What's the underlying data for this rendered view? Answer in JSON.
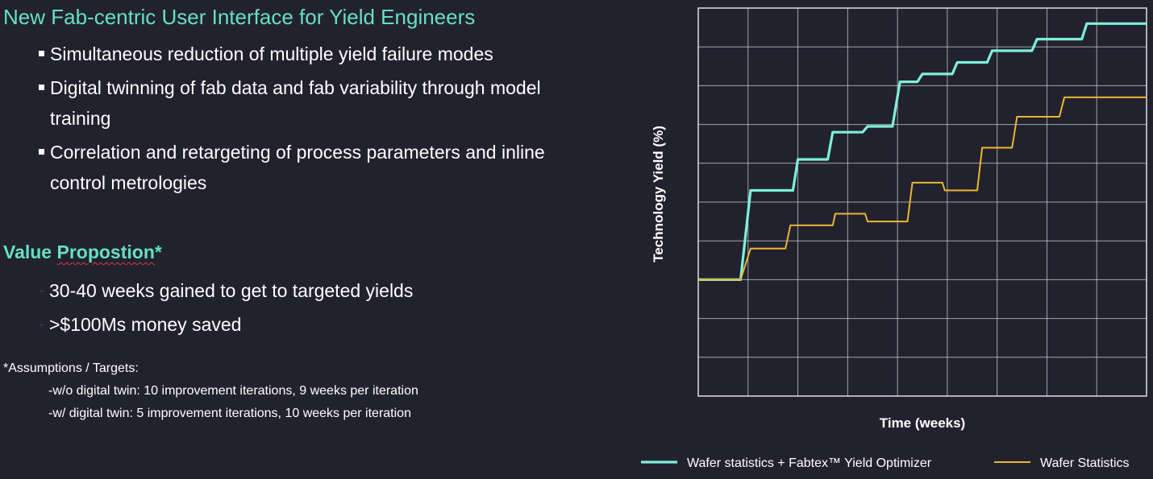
{
  "title": "New Fab-centric User Interface for Yield Engineers",
  "bullets": [
    {
      "text": "Simultaneous reduction of multiple yield failure modes"
    },
    {
      "text": "Digital twinning of fab data and fab variability through model training"
    },
    {
      "text": "Correlation and retargeting of process parameters and inline control metrologies"
    }
  ],
  "value_prop": {
    "title": "Value Propostion*",
    "items": [
      "30-40 weeks gained to get to targeted yields",
      ">$100Ms money saved"
    ]
  },
  "assumptions": {
    "title": "*Assumptions / Targets:",
    "lines": [
      "-w/o digital twin: 10 improvement iterations, 9 weeks per iteration",
      "-w/ digital twin: 5 improvement iterations, 10 weeks per iteration"
    ]
  },
  "colors": {
    "accent": "#66e0c2",
    "series_optimizer": "#7ef0d8",
    "series_wafer": "#e8b832",
    "grid": "#cfcfcf",
    "background": "#22222f"
  },
  "chart_data": {
    "type": "line",
    "title": "",
    "xlabel": "Time (weeks)",
    "ylabel": "Technology Yield (%)",
    "xlim": [
      0,
      9
    ],
    "ylim": [
      0,
      10
    ],
    "grid": true,
    "legend_position": "bottom",
    "series": [
      {
        "name": "Wafer statistics + Fabtex™ Yield Optimizer",
        "color": "#7ef0d8",
        "points": [
          [
            0,
            3.0
          ],
          [
            0.85,
            3.0
          ],
          [
            1.05,
            5.3
          ],
          [
            1.9,
            5.3
          ],
          [
            2.0,
            6.1
          ],
          [
            2.6,
            6.1
          ],
          [
            2.7,
            6.8
          ],
          [
            3.3,
            6.8
          ],
          [
            3.4,
            6.95
          ],
          [
            3.9,
            6.95
          ],
          [
            4.05,
            8.1
          ],
          [
            4.4,
            8.1
          ],
          [
            4.5,
            8.3
          ],
          [
            5.1,
            8.3
          ],
          [
            5.2,
            8.6
          ],
          [
            5.8,
            8.6
          ],
          [
            5.9,
            8.9
          ],
          [
            6.7,
            8.9
          ],
          [
            6.8,
            9.2
          ],
          [
            7.7,
            9.2
          ],
          [
            7.8,
            9.6
          ],
          [
            9.0,
            9.6
          ]
        ]
      },
      {
        "name": "Wafer Statistics",
        "color": "#e8b832",
        "points": [
          [
            0,
            3.0
          ],
          [
            0.85,
            3.0
          ],
          [
            1.05,
            3.8
          ],
          [
            1.75,
            3.8
          ],
          [
            1.85,
            4.4
          ],
          [
            2.7,
            4.4
          ],
          [
            2.75,
            4.7
          ],
          [
            3.35,
            4.7
          ],
          [
            3.4,
            4.5
          ],
          [
            4.2,
            4.5
          ],
          [
            4.3,
            5.5
          ],
          [
            4.9,
            5.5
          ],
          [
            4.95,
            5.3
          ],
          [
            5.6,
            5.3
          ],
          [
            5.7,
            6.4
          ],
          [
            6.3,
            6.4
          ],
          [
            6.4,
            7.2
          ],
          [
            7.25,
            7.2
          ],
          [
            7.35,
            7.7
          ],
          [
            9.0,
            7.7
          ]
        ]
      }
    ]
  }
}
